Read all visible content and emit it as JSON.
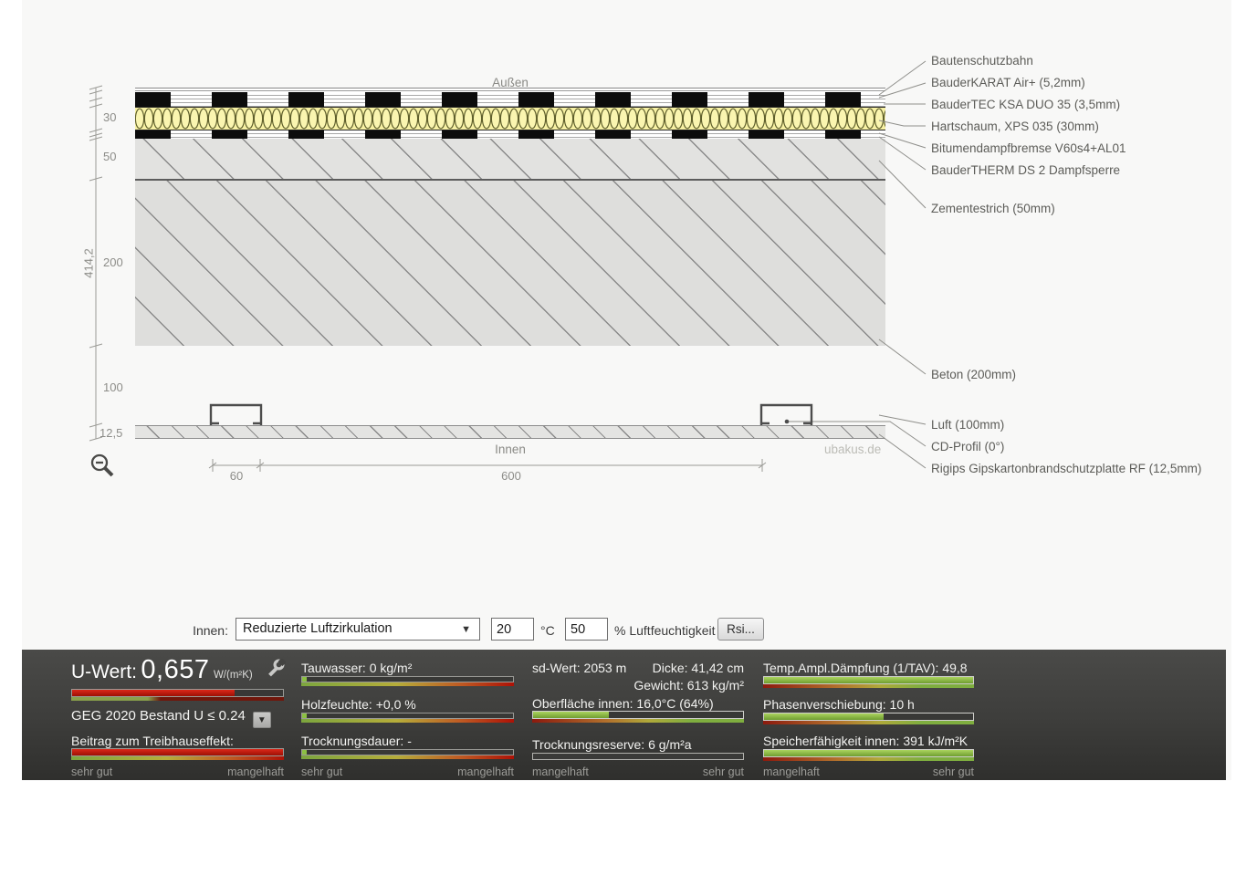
{
  "diagram": {
    "outside_label": "Außen",
    "inside_label": "Innen",
    "watermark": "ubakus.de",
    "layers": [
      {
        "label": "Bautenschutzbahn"
      },
      {
        "label": "BauderKARAT Air+ (5,2mm)"
      },
      {
        "label": "BauderTEC KSA DUO 35 (3,5mm)"
      },
      {
        "label": "Hartschaum, XPS 035 (30mm)"
      },
      {
        "label": "Bitumendampfbremse V60s4+AL01"
      },
      {
        "label": "BauderTHERM DS 2 Dampfsperre"
      },
      {
        "label": "Zementestrich (50mm)"
      },
      {
        "label": "Beton (200mm)"
      },
      {
        "label": "Luft (100mm)"
      },
      {
        "label": "CD-Profil (0°)"
      },
      {
        "label": "Rigips Gipskartonbrandschutzplatte RF (12,5mm)"
      }
    ],
    "dims": {
      "total_height": "414,2",
      "h30": "30",
      "h50": "50",
      "h200": "200",
      "h100": "100",
      "h12_5": "12,5",
      "w60": "60",
      "w600": "600"
    }
  },
  "controls": {
    "innen_label": "Innen:",
    "ventilation": "Reduzierte Luftzirkulation",
    "select_arrow": "▼",
    "temperature": "20",
    "temperature_unit": "°C",
    "humidity": "50",
    "humidity_unit": "% Luftfeuchtigkeit",
    "rsi_label": "Rsi..."
  },
  "results": {
    "u_wert": {
      "label": "U-Wert:",
      "value": "0,657",
      "unit": "W/(m²K)"
    },
    "geg_label": "GEG 2020 Bestand U ≤ 0.24",
    "geg_arrow": "▼",
    "treibhaus_label": "Beitrag zum Treibhauseffekt:",
    "tauwasser": {
      "label": "Tauwasser:",
      "value": "0 kg/m²"
    },
    "holzfeuchte": {
      "label": "Holzfeuchte:",
      "value": "+0,0 %"
    },
    "trocknungsdauer": {
      "label": "Trocknungsdauer:",
      "value": "-"
    },
    "sd_wert": {
      "label": "sd-Wert:",
      "value": "2053 m"
    },
    "dicke": {
      "label": "Dicke:",
      "value": "41,42 cm"
    },
    "gewicht": {
      "label": "Gewicht:",
      "value": "613 kg/m²"
    },
    "oberflaeche": {
      "label": "Oberfläche innen:",
      "value": "16,0°C (64%)"
    },
    "trocknungsreserve": {
      "label": "Trocknungsreserve:",
      "value": "6 g/m²a"
    },
    "temp_ampl": {
      "label": "Temp.Ampl.Dämpfung (1/TAV):",
      "value": "49,8"
    },
    "phase": {
      "label": "Phasenverschiebung:",
      "value": "10 h"
    },
    "speicher": {
      "label": "Speicherfähigkeit innen:",
      "value": "391 kJ/m²K"
    },
    "scale_sehr_gut": "sehr gut",
    "scale_mangelhaft": "mangelhaft"
  },
  "bars": {
    "u_value_pct": 77,
    "treibhaus_pct": 100,
    "tauwasser_pct": 0,
    "holzfeuchte_pct": 0,
    "trocknungsdauer_pct": 0,
    "oberflaeche_pct": 36,
    "trocknungsreserve_pct": 0,
    "temp_ampl_pct": 100,
    "phase_pct": 57,
    "speicher_pct": 100
  },
  "colors": {
    "bar_red": "#c41408",
    "bar_green": "#8cc043",
    "xps_yellow": "#f7f1a3",
    "panel_dark": "#3a3a38",
    "scale_green": "#7fae3f",
    "scale_red": "#8c1a0e"
  }
}
